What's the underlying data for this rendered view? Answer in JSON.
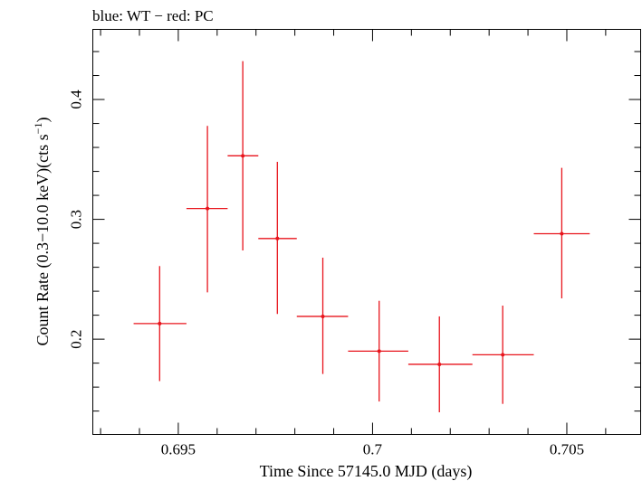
{
  "chart_data": {
    "type": "scatter",
    "title": "blue: WT − red: PC",
    "xlabel": "Time Since 57145.0 MJD (days)",
    "ylabel_main": "Count Rate (0.3−10.0 keV)(cts s",
    "ylabel_sup": "−1",
    "ylabel_end": ")",
    "xlim": [
      0.6928,
      0.7069
    ],
    "ylim": [
      0.1205,
      0.4585
    ],
    "x_ticks": [
      {
        "value": 0.695,
        "label": "0.695"
      },
      {
        "value": 0.7,
        "label": "0.7"
      },
      {
        "value": 0.705,
        "label": "0.705"
      }
    ],
    "y_ticks": [
      {
        "value": 0.2,
        "label": "0.2"
      },
      {
        "value": 0.3,
        "label": "0.3"
      },
      {
        "value": 0.4,
        "label": "0.4"
      }
    ],
    "series": [
      {
        "color": "#e8141c",
        "points": [
          {
            "x": 0.69452,
            "y": 0.213,
            "xerr": [
              0.69385,
              0.69521
            ],
            "yerr": [
              0.165,
              0.261
            ]
          },
          {
            "x": 0.69575,
            "y": 0.309,
            "xerr": [
              0.69521,
              0.69627
            ],
            "yerr": [
              0.239,
              0.378
            ]
          },
          {
            "x": 0.69666,
            "y": 0.353,
            "xerr": [
              0.69627,
              0.69706
            ],
            "yerr": [
              0.274,
              0.432
            ]
          },
          {
            "x": 0.69755,
            "y": 0.284,
            "xerr": [
              0.69706,
              0.69805
            ],
            "yerr": [
              0.221,
              0.348
            ]
          },
          {
            "x": 0.69872,
            "y": 0.219,
            "xerr": [
              0.69805,
              0.69937
            ],
            "yerr": [
              0.171,
              0.268
            ]
          },
          {
            "x": 0.70017,
            "y": 0.19,
            "xerr": [
              0.69937,
              0.70092
            ],
            "yerr": [
              0.148,
              0.232
            ]
          },
          {
            "x": 0.70172,
            "y": 0.179,
            "xerr": [
              0.70092,
              0.70257
            ],
            "yerr": [
              0.139,
              0.219
            ]
          },
          {
            "x": 0.70335,
            "y": 0.187,
            "xerr": [
              0.70257,
              0.70415
            ],
            "yerr": [
              0.146,
              0.228
            ]
          },
          {
            "x": 0.70487,
            "y": 0.288,
            "xerr": [
              0.70415,
              0.70559
            ],
            "yerr": [
              0.234,
              0.343
            ]
          }
        ]
      }
    ]
  }
}
